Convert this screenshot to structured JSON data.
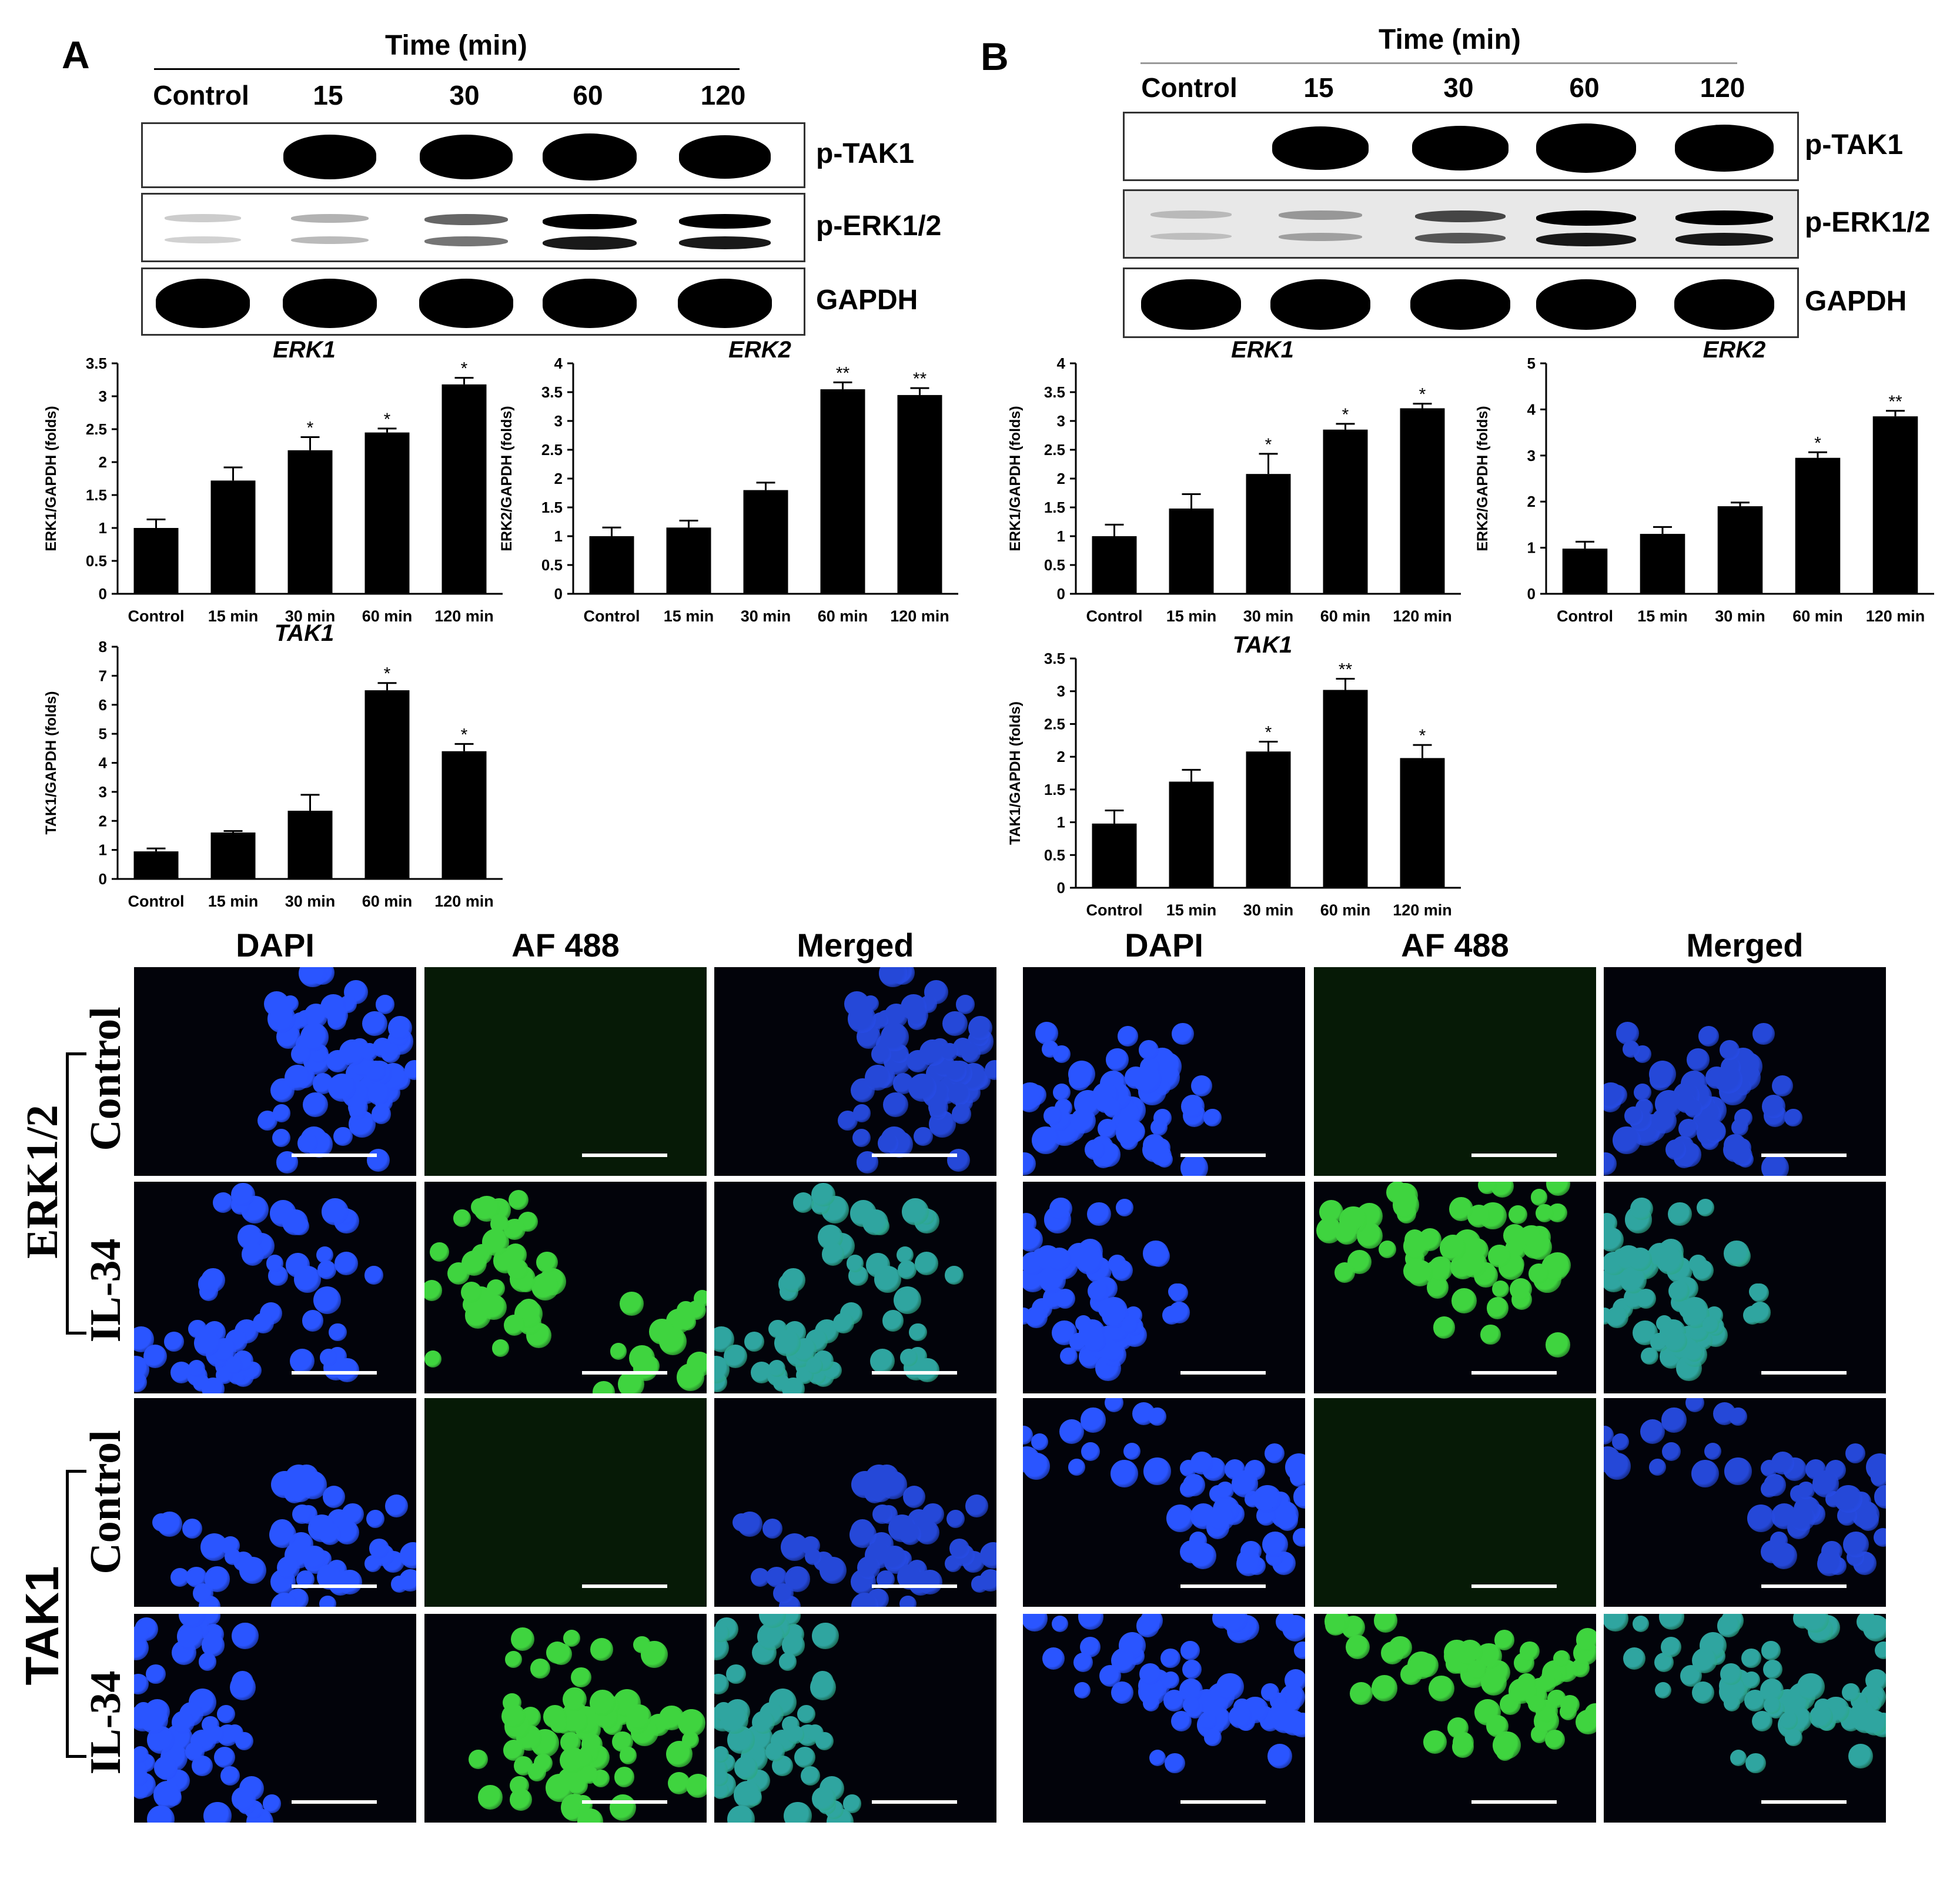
{
  "panels": {
    "A": {
      "label": "A",
      "time_header": "Time (min)",
      "lanes": [
        "Control",
        "15",
        "30",
        "60",
        "120"
      ],
      "blot_labels": [
        "p-TAK1",
        "p-ERK1/2",
        "GAPDH"
      ],
      "band_intensity": {
        "p-TAK1": [
          0,
          0.9,
          0.9,
          1.0,
          0.85
        ],
        "p-ERK1/2": [
          0.05,
          0.15,
          0.45,
          1.0,
          0.9
        ],
        "GAPDH": [
          1,
          1,
          1,
          1,
          1
        ]
      }
    },
    "B": {
      "label": "B",
      "time_header": "Time (min)",
      "lanes": [
        "Control",
        "15",
        "30",
        "60",
        "120"
      ],
      "blot_labels": [
        "p-TAK1",
        "p-ERK1/2",
        "GAPDH"
      ],
      "band_intensity": {
        "p-TAK1": [
          0,
          0.75,
          0.8,
          1.0,
          0.9
        ],
        "p-ERK1/2": [
          0.05,
          0.2,
          0.55,
          1.0,
          0.9
        ],
        "GAPDH": [
          1,
          1,
          1,
          1,
          1
        ]
      }
    }
  },
  "chart_data": [
    {
      "id": "A-ERK1",
      "type": "bar",
      "title": "ERK1",
      "ylabel": "ERK1/GAPDH (folds)",
      "categories": [
        "Control",
        "15 min",
        "30 min",
        "60 min",
        "120 min"
      ],
      "values": [
        1.0,
        1.72,
        2.18,
        2.45,
        3.18
      ],
      "errors": [
        0.13,
        0.2,
        0.2,
        0.06,
        0.1
      ],
      "sig": [
        "",
        "",
        "*",
        "*",
        "*"
      ],
      "ylim": [
        0,
        3.5
      ],
      "yticks": [
        "0",
        "0.5",
        "1",
        "1.5",
        "2",
        "2.5",
        "3",
        "3.5"
      ]
    },
    {
      "id": "A-ERK2",
      "type": "bar",
      "title": "ERK2",
      "ylabel": "ERK2/GAPDH (folds)",
      "categories": [
        "Control",
        "15 min",
        "30 min",
        "60 min",
        "120 min"
      ],
      "values": [
        1.0,
        1.15,
        1.8,
        3.55,
        3.45
      ],
      "errors": [
        0.15,
        0.12,
        0.13,
        0.12,
        0.12
      ],
      "sig": [
        "",
        "",
        "",
        "**",
        "**"
      ],
      "ylim": [
        0,
        4
      ],
      "yticks": [
        "0",
        "0.5",
        "1",
        "1.5",
        "2",
        "2.5",
        "3",
        "3.5",
        "4"
      ]
    },
    {
      "id": "A-TAK1",
      "type": "bar",
      "title": "TAK1",
      "ylabel": "TAK1/GAPDH (folds)",
      "categories": [
        "Control",
        "15 min",
        "30 min",
        "60 min",
        "120 min"
      ],
      "values": [
        0.95,
        1.6,
        2.35,
        6.5,
        4.4
      ],
      "errors": [
        0.1,
        0.05,
        0.55,
        0.25,
        0.25
      ],
      "sig": [
        "",
        "",
        "",
        "*",
        "*"
      ],
      "ylim": [
        0,
        8
      ],
      "yticks": [
        "0",
        "1",
        "2",
        "3",
        "4",
        "5",
        "6",
        "7",
        "8"
      ]
    },
    {
      "id": "B-ERK1",
      "type": "bar",
      "title": "ERK1",
      "ylabel": "ERK1/GAPDH (folds)",
      "categories": [
        "Control",
        "15 min",
        "30 min",
        "60 min",
        "120 min"
      ],
      "values": [
        1.0,
        1.48,
        2.08,
        2.85,
        3.22
      ],
      "errors": [
        0.2,
        0.25,
        0.35,
        0.1,
        0.08
      ],
      "sig": [
        "",
        "",
        "*",
        "*",
        "*"
      ],
      "ylim": [
        0,
        4
      ],
      "yticks": [
        "0",
        "0.5",
        "1",
        "1.5",
        "2",
        "2.5",
        "3",
        "3.5",
        "4"
      ]
    },
    {
      "id": "B-ERK2",
      "type": "bar",
      "title": "ERK2",
      "ylabel": "ERK2/GAPDH (folds)",
      "categories": [
        "Control",
        "15 min",
        "30 min",
        "60 min",
        "120 min"
      ],
      "values": [
        0.98,
        1.3,
        1.9,
        2.95,
        3.85
      ],
      "errors": [
        0.15,
        0.15,
        0.08,
        0.12,
        0.12
      ],
      "sig": [
        "",
        "",
        "",
        "*",
        "**"
      ],
      "ylim": [
        0,
        5
      ],
      "yticks": [
        "0",
        "1",
        "2",
        "3",
        "4",
        "5"
      ]
    },
    {
      "id": "B-TAK1",
      "type": "bar",
      "title": "TAK1",
      "ylabel": "TAK1/GAPDH (folds)",
      "categories": [
        "Control",
        "15 min",
        "30 min",
        "60 min",
        "120 min"
      ],
      "values": [
        0.98,
        1.62,
        2.08,
        3.02,
        1.98
      ],
      "errors": [
        0.2,
        0.18,
        0.15,
        0.17,
        0.2
      ],
      "sig": [
        "",
        "",
        "*",
        "**",
        "*"
      ],
      "ylim": [
        0,
        3.5
      ],
      "yticks": [
        "0",
        "0.5",
        "1",
        "1.5",
        "2",
        "2.5",
        "3",
        "3.5"
      ]
    }
  ],
  "micro": {
    "col_headers_left": [
      "DAPI",
      "AF 488",
      "Merged"
    ],
    "col_headers_right": [
      "DAPI",
      "AF 488",
      "Merged"
    ],
    "group1_label": "ERK1/2",
    "group2_label": "TAK1",
    "row_labels": [
      "Control",
      "IL-34",
      "Control",
      "IL-34"
    ],
    "colors": {
      "dapi": "#1d4cf0",
      "af488": "#39c83a",
      "merged": "#2a8fb0",
      "bg": "#02030a"
    }
  }
}
